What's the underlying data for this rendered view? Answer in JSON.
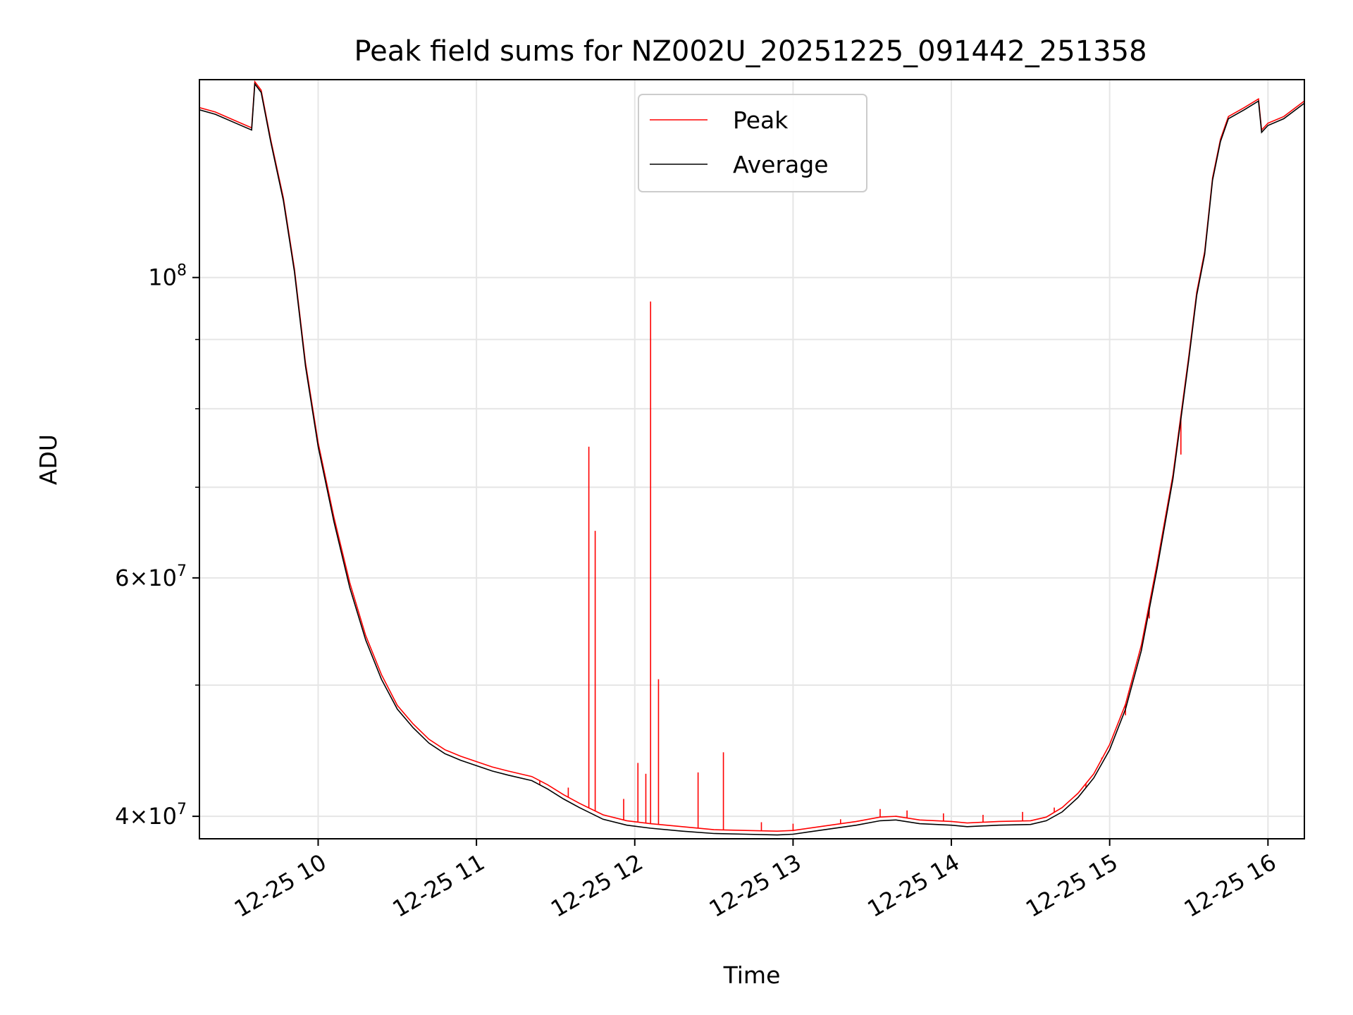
{
  "chart_data": {
    "type": "line",
    "title": "Peak field sums for NZ002U_20251225_091442_251358",
    "xlabel": "Time",
    "ylabel": "ADU",
    "yscale": "log",
    "grid": true,
    "legend_position": "top-center",
    "x_unit": "hours since 12-25 00:00",
    "xlim": [
      9.25,
      16.23
    ],
    "ylim": [
      38500000,
      140000000
    ],
    "x_ticks": [
      {
        "value": 10,
        "label": "12-25 10"
      },
      {
        "value": 11,
        "label": "12-25 11"
      },
      {
        "value": 12,
        "label": "12-25 12"
      },
      {
        "value": 13,
        "label": "12-25 13"
      },
      {
        "value": 14,
        "label": "12-25 14"
      },
      {
        "value": 15,
        "label": "12-25 15"
      },
      {
        "value": 16,
        "label": "12-25 16"
      }
    ],
    "y_major_ticks": [
      {
        "value": 40000000,
        "base": "4",
        "exponent": "7"
      },
      {
        "value": 60000000,
        "base": "6",
        "exponent": "7"
      },
      {
        "value": 100000000,
        "base": "10",
        "exponent": "8"
      }
    ],
    "y_minor_ticks": [
      50000000,
      70000000,
      80000000,
      90000000
    ],
    "series": [
      {
        "name": "Average",
        "color": "#000000",
        "points": [
          [
            9.25,
            133000000
          ],
          [
            9.35,
            132000000
          ],
          [
            9.48,
            130000000
          ],
          [
            9.58,
            128500000
          ],
          [
            9.6,
            139000000
          ],
          [
            9.64,
            137000000
          ],
          [
            9.7,
            126000000
          ],
          [
            9.78,
            114000000
          ],
          [
            9.85,
            101000000
          ],
          [
            9.92,
            86000000
          ],
          [
            10.0,
            75000000
          ],
          [
            10.1,
            66000000
          ],
          [
            10.2,
            59000000
          ],
          [
            10.3,
            54000000
          ],
          [
            10.4,
            50500000
          ],
          [
            10.5,
            48000000
          ],
          [
            10.6,
            46500000
          ],
          [
            10.7,
            45300000
          ],
          [
            10.8,
            44500000
          ],
          [
            10.9,
            44000000
          ],
          [
            11.0,
            43600000
          ],
          [
            11.1,
            43200000
          ],
          [
            11.2,
            42900000
          ],
          [
            11.35,
            42500000
          ],
          [
            11.45,
            41900000
          ],
          [
            11.55,
            41200000
          ],
          [
            11.65,
            40600000
          ],
          [
            11.8,
            39800000
          ],
          [
            11.95,
            39400000
          ],
          [
            12.1,
            39200000
          ],
          [
            12.3,
            39000000
          ],
          [
            12.5,
            38850000
          ],
          [
            12.7,
            38800000
          ],
          [
            12.9,
            38750000
          ],
          [
            13.0,
            38800000
          ],
          [
            13.2,
            39100000
          ],
          [
            13.4,
            39400000
          ],
          [
            13.55,
            39700000
          ],
          [
            13.65,
            39750000
          ],
          [
            13.8,
            39500000
          ],
          [
            14.0,
            39400000
          ],
          [
            14.1,
            39300000
          ],
          [
            14.3,
            39400000
          ],
          [
            14.5,
            39450000
          ],
          [
            14.6,
            39700000
          ],
          [
            14.7,
            40300000
          ],
          [
            14.8,
            41300000
          ],
          [
            14.9,
            42700000
          ],
          [
            15.0,
            44800000
          ],
          [
            15.1,
            48000000
          ],
          [
            15.2,
            53000000
          ],
          [
            15.3,
            61000000
          ],
          [
            15.4,
            71000000
          ],
          [
            15.5,
            87000000
          ],
          [
            15.55,
            97000000
          ],
          [
            15.6,
            104000000
          ],
          [
            15.65,
            118000000
          ],
          [
            15.7,
            126000000
          ],
          [
            15.75,
            131000000
          ],
          [
            15.85,
            133000000
          ],
          [
            15.94,
            135000000
          ],
          [
            15.96,
            128000000
          ],
          [
            16.0,
            129500000
          ],
          [
            16.1,
            131000000
          ],
          [
            16.23,
            134500000
          ]
        ]
      },
      {
        "name": "Peak",
        "color": "#ff0000",
        "points": [
          [
            9.25,
            133500000
          ],
          [
            9.35,
            132500000
          ],
          [
            9.48,
            130500000
          ],
          [
            9.58,
            129000000
          ],
          [
            9.6,
            139500000
          ],
          [
            9.64,
            137500000
          ],
          [
            9.7,
            126500000
          ],
          [
            9.78,
            114500000
          ],
          [
            9.85,
            101500000
          ],
          [
            9.92,
            86500000
          ],
          [
            10.0,
            75500000
          ],
          [
            10.1,
            66500000
          ],
          [
            10.2,
            59500000
          ],
          [
            10.3,
            54400000
          ],
          [
            10.4,
            50900000
          ],
          [
            10.5,
            48300000
          ],
          [
            10.6,
            46800000
          ],
          [
            10.7,
            45600000
          ],
          [
            10.8,
            44800000
          ],
          [
            10.9,
            44300000
          ],
          [
            11.0,
            43900000
          ],
          [
            11.1,
            43500000
          ],
          [
            11.2,
            43200000
          ],
          [
            11.35,
            42800000
          ],
          [
            11.45,
            42200000
          ],
          [
            11.55,
            41500000
          ],
          [
            11.65,
            40900000
          ],
          [
            11.8,
            40100000
          ],
          [
            11.95,
            39700000
          ],
          [
            12.1,
            39500000
          ],
          [
            12.3,
            39300000
          ],
          [
            12.5,
            39100000
          ],
          [
            12.7,
            39050000
          ],
          [
            12.9,
            39000000
          ],
          [
            13.0,
            39050000
          ],
          [
            13.2,
            39350000
          ],
          [
            13.4,
            39650000
          ],
          [
            13.55,
            39950000
          ],
          [
            13.65,
            40000000
          ],
          [
            13.8,
            39750000
          ],
          [
            14.0,
            39650000
          ],
          [
            14.1,
            39550000
          ],
          [
            14.3,
            39650000
          ],
          [
            14.5,
            39700000
          ],
          [
            14.6,
            39950000
          ],
          [
            14.7,
            40600000
          ],
          [
            14.8,
            41600000
          ],
          [
            14.9,
            43000000
          ],
          [
            15.0,
            45200000
          ],
          [
            15.1,
            48400000
          ],
          [
            15.2,
            53500000
          ],
          [
            15.3,
            61500000
          ],
          [
            15.4,
            71500000
          ],
          [
            15.5,
            87500000
          ],
          [
            15.55,
            97500000
          ],
          [
            15.6,
            104500000
          ],
          [
            15.65,
            118500000
          ],
          [
            15.7,
            126500000
          ],
          [
            15.75,
            131500000
          ],
          [
            15.85,
            133500000
          ],
          [
            15.94,
            135500000
          ],
          [
            15.96,
            128500000
          ],
          [
            16.0,
            130000000
          ],
          [
            16.1,
            131500000
          ],
          [
            16.23,
            135000000
          ]
        ],
        "spikes": [
          [
            11.4,
            42200000
          ],
          [
            11.58,
            42000000
          ],
          [
            11.71,
            75000000
          ],
          [
            11.75,
            65000000
          ],
          [
            11.93,
            41200000
          ],
          [
            12.02,
            43800000
          ],
          [
            12.07,
            43000000
          ],
          [
            12.1,
            96000000
          ],
          [
            12.15,
            50500000
          ],
          [
            12.4,
            43100000
          ],
          [
            12.56,
            44600000
          ],
          [
            12.8,
            39600000
          ],
          [
            13.0,
            39500000
          ],
          [
            13.3,
            39800000
          ],
          [
            13.55,
            40500000
          ],
          [
            13.72,
            40400000
          ],
          [
            13.95,
            40200000
          ],
          [
            14.2,
            40100000
          ],
          [
            14.45,
            40300000
          ],
          [
            14.65,
            40600000
          ],
          [
            14.85,
            42000000
          ],
          [
            14.95,
            44200000
          ],
          [
            15.1,
            47500000
          ],
          [
            15.25,
            56000000
          ],
          [
            15.35,
            66000000
          ],
          [
            15.45,
            74000000
          ]
        ]
      }
    ]
  }
}
